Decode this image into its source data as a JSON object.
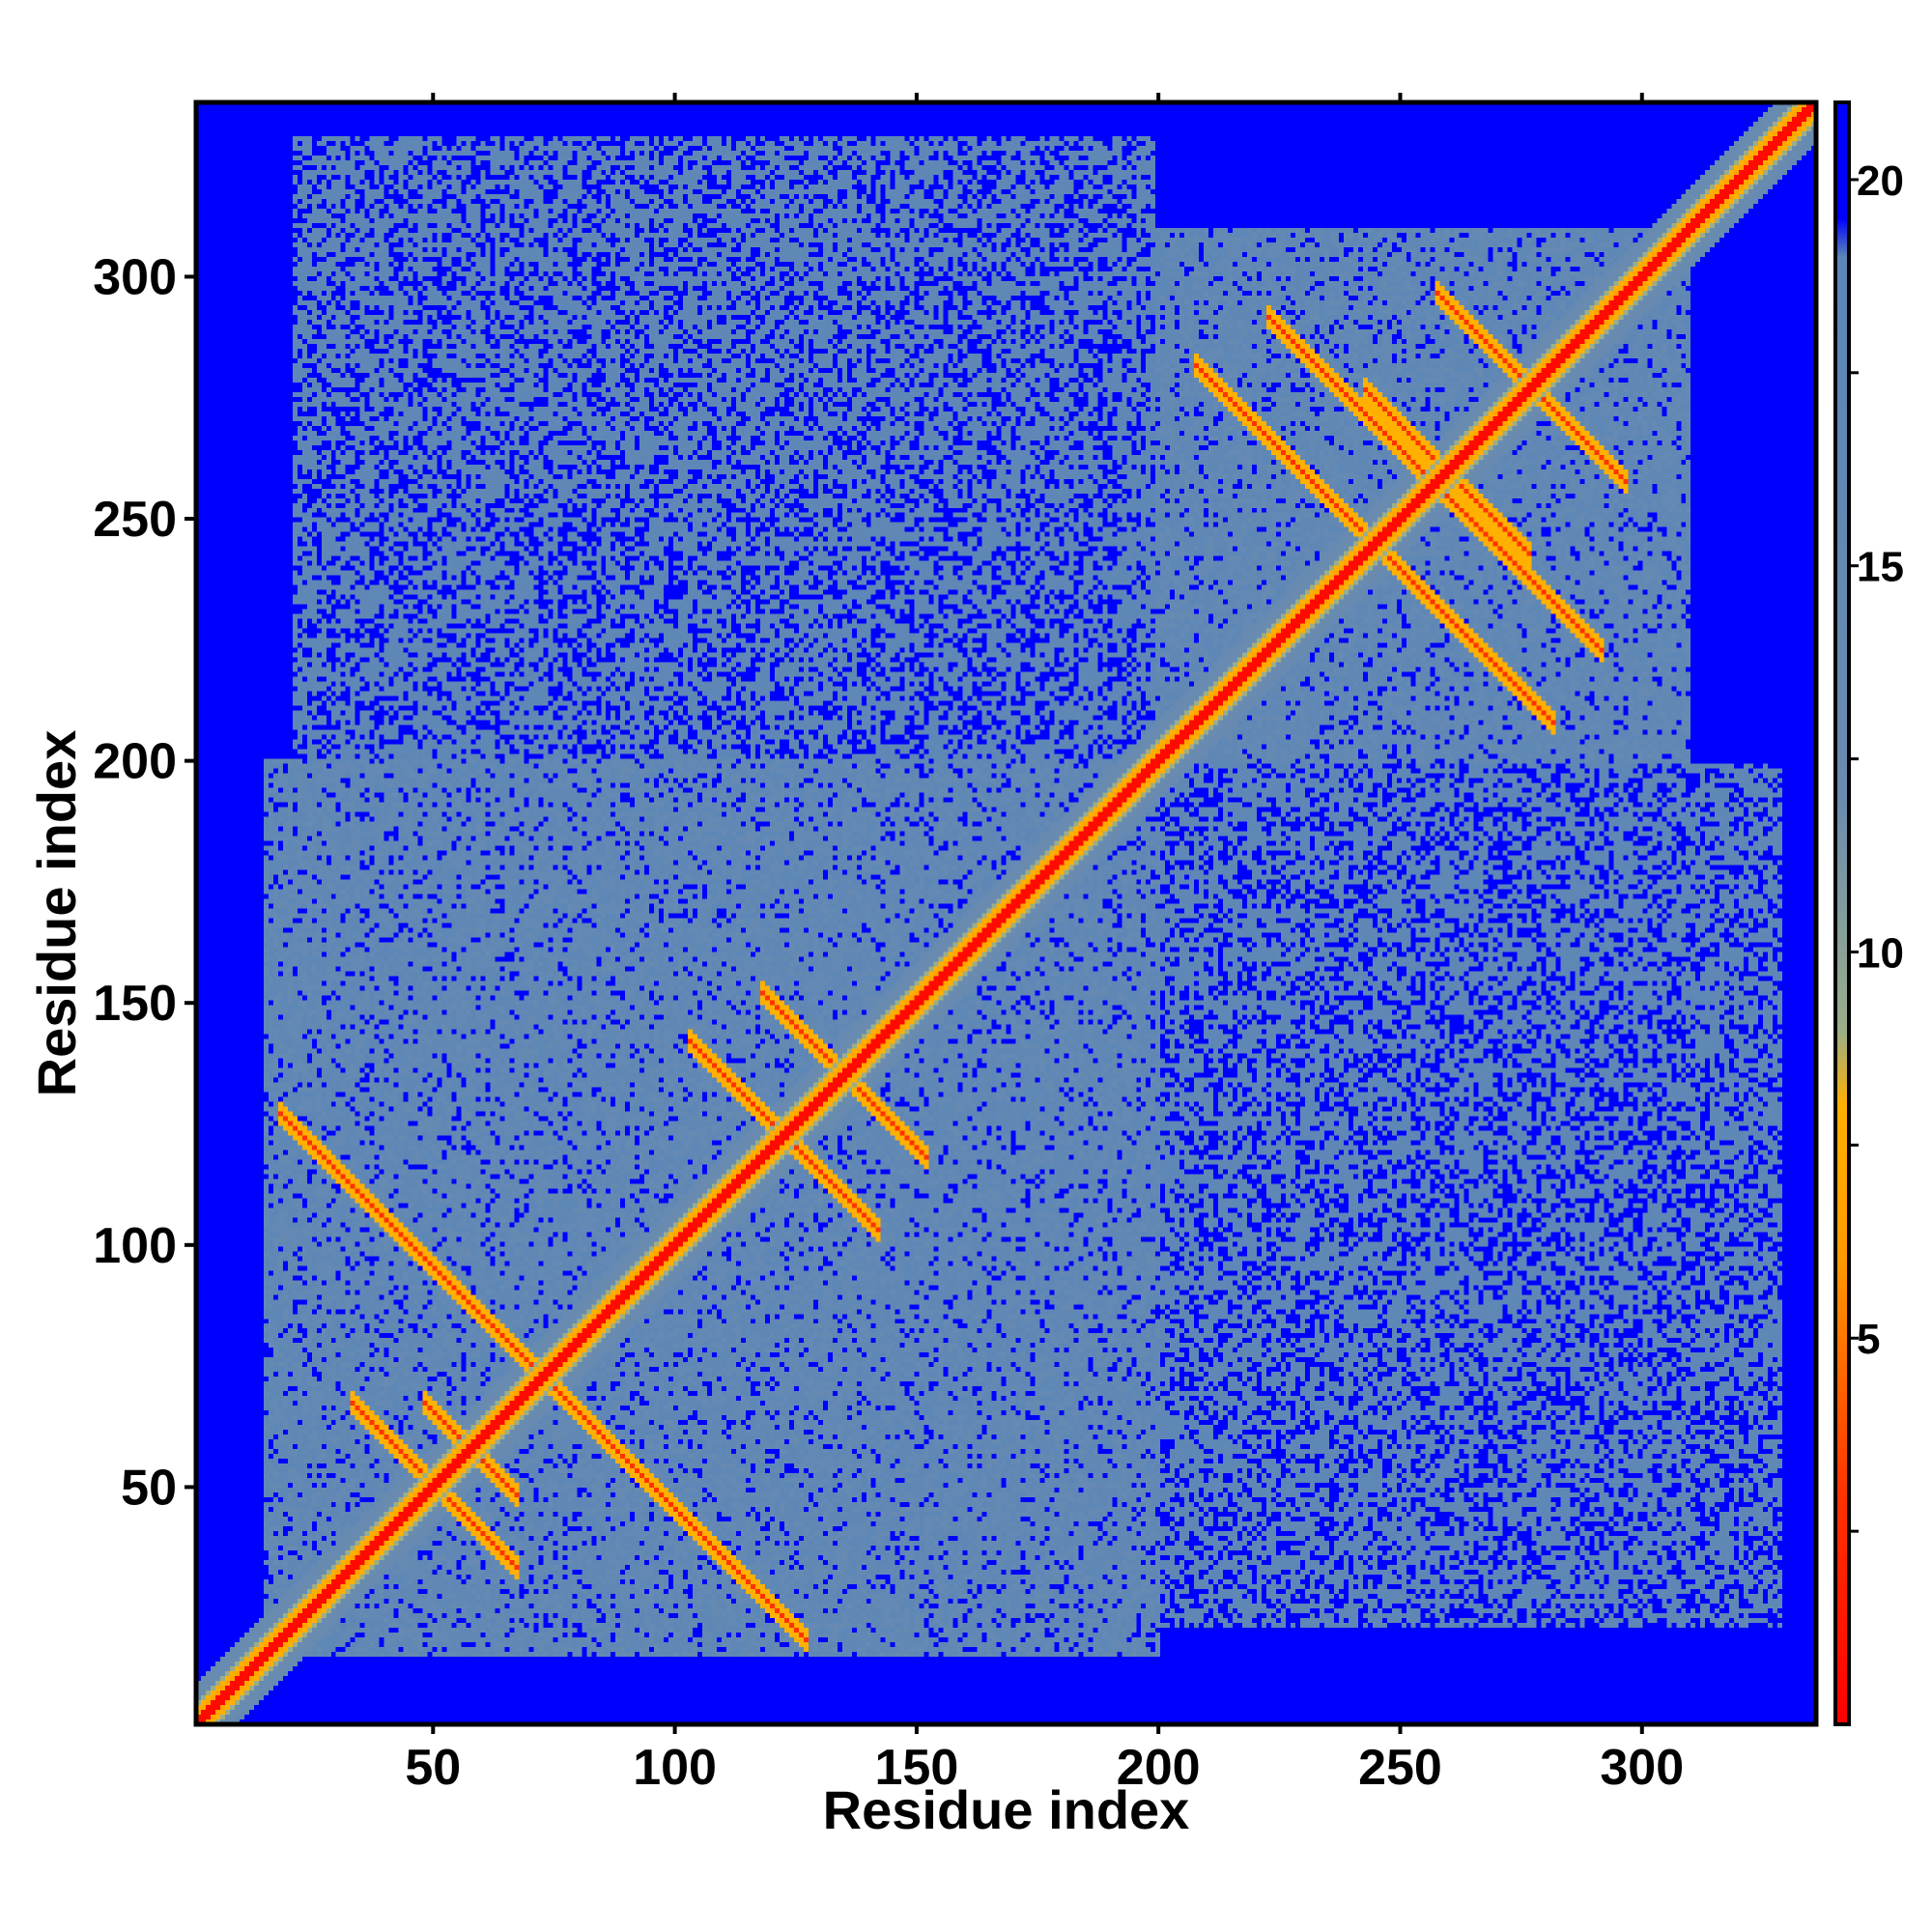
{
  "chart_data": {
    "type": "heatmap",
    "title": "",
    "xlabel": "Residue index",
    "ylabel": "Residue index",
    "xlim": [
      1,
      336
    ],
    "ylim": [
      1,
      336
    ],
    "x_ticks": [
      50,
      100,
      150,
      200,
      250,
      300
    ],
    "y_ticks": [
      50,
      100,
      150,
      200,
      250,
      300
    ],
    "colorbar": {
      "ticks": [
        5,
        10,
        15,
        20
      ],
      "range": [
        0,
        21
      ],
      "stops": [
        {
          "value": 0,
          "color": "#ff0000"
        },
        {
          "value": 3,
          "color": "#ff3300"
        },
        {
          "value": 6,
          "color": "#ff9900"
        },
        {
          "value": 8,
          "color": "#ffb000"
        },
        {
          "value": 9,
          "color": "#9aae8a"
        },
        {
          "value": 12,
          "color": "#6a8bb0"
        },
        {
          "value": 19,
          "color": "#5a86b8"
        },
        {
          "value": 19.5,
          "color": "#0000ff"
        },
        {
          "value": 21,
          "color": "#0000ff"
        }
      ]
    },
    "features": {
      "diagonal": "contact distance ~0 along i = j",
      "blocks": [
        {
          "range": [
            15,
            200
          ],
          "kind": "low-distance domain"
        },
        {
          "range": [
            200,
            310
          ],
          "kind": "low-distance domain"
        }
      ],
      "off_diagonal_contacts": [
        [
          25,
          120
        ],
        [
          40,
          60
        ],
        [
          55,
          60
        ],
        [
          110,
          135
        ],
        [
          125,
          145
        ],
        [
          215,
          275
        ],
        [
          230,
          285
        ],
        [
          250,
          270
        ],
        [
          265,
          290
        ]
      ]
    }
  }
}
